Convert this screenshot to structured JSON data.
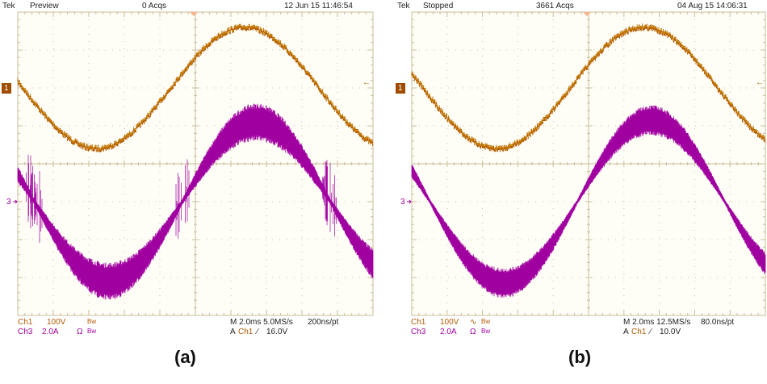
{
  "colors": {
    "ch1": "#b35a00",
    "ch1_highlight": "#e8c400",
    "ch3": "#a000a0",
    "screen": "#fffef6",
    "grid": "#c9bd9c"
  },
  "panels": [
    {
      "caption": "(a)",
      "header": {
        "brand": "Tek",
        "state": "Preview",
        "acqs": "0 Acqs",
        "datetime": "12 Jun 15 11:46:54"
      },
      "footer": {
        "ch1_label": "Ch1",
        "ch1_scale": "100V",
        "ch1_flag": "",
        "ch1_bw": "Bw",
        "ch3_label": "Ch3",
        "ch3_scale": "2.0A",
        "ch3_flag": "Ω",
        "ch3_bw": "Bw",
        "timebase": "M 2.0ms 5.0MS/s",
        "resolution": "200ns/pt",
        "trigger_prefix": "A",
        "trigger_source": "Ch1",
        "trigger_slope": "⁄",
        "trigger_level": "16.0V"
      },
      "markers": {
        "ch1": "1",
        "ch3": "3",
        "trigger_level_arrow": "←"
      }
    },
    {
      "caption": "(b)",
      "header": {
        "brand": "Tek",
        "state": "Stopped",
        "acqs": "3661 Acqs",
        "datetime": "04 Aug 15 14:06:31"
      },
      "footer": {
        "ch1_label": "Ch1",
        "ch1_scale": "100V",
        "ch1_flag": "∿",
        "ch1_bw": "Bw",
        "ch3_label": "Ch3",
        "ch3_scale": "2.0A",
        "ch3_flag": "Ω",
        "ch3_bw": "Bw",
        "timebase": "M 2.0ms 12.5MS/s",
        "resolution": "80.0ns/pt",
        "trigger_prefix": "A",
        "trigger_source": "Ch1",
        "trigger_slope": "⁄",
        "trigger_level": "10.0V"
      },
      "markers": {
        "ch1": "1",
        "ch3": "3",
        "trigger_level_arrow": "←"
      }
    }
  ],
  "chart_data": [
    {
      "type": "line",
      "title": "(a)",
      "x_unit": "ms",
      "time_per_div": 2.0,
      "xlim": [
        0,
        20
      ],
      "grid": true,
      "series": [
        {
          "name": "Ch1",
          "unit": "V",
          "per_div": 100,
          "waveform": "sine",
          "amplitude": 160,
          "period_ms": 16.67,
          "minimum_at_ms": 4.45,
          "noise_pp": 10
        },
        {
          "name": "Ch3",
          "unit": "A",
          "per_div": 2.0,
          "waveform": "sine",
          "amplitude": 4.2,
          "period_ms": 16.67,
          "minimum_at_ms": 5.1,
          "ripple_pp": 2.0,
          "zero_crossing_spikes": true
        }
      ]
    },
    {
      "type": "line",
      "title": "(b)",
      "x_unit": "ms",
      "time_per_div": 2.0,
      "xlim": [
        0,
        20
      ],
      "grid": true,
      "series": [
        {
          "name": "Ch1",
          "unit": "V",
          "per_div": 100,
          "waveform": "sine",
          "amplitude": 160,
          "period_ms": 16.67,
          "minimum_at_ms": 4.8,
          "noise_pp": 10
        },
        {
          "name": "Ch3",
          "unit": "A",
          "per_div": 2.0,
          "waveform": "sine",
          "amplitude": 4.3,
          "period_ms": 16.67,
          "minimum_at_ms": 5.2,
          "ripple_pp": 1.6,
          "zero_crossing_spikes": false
        }
      ]
    }
  ]
}
